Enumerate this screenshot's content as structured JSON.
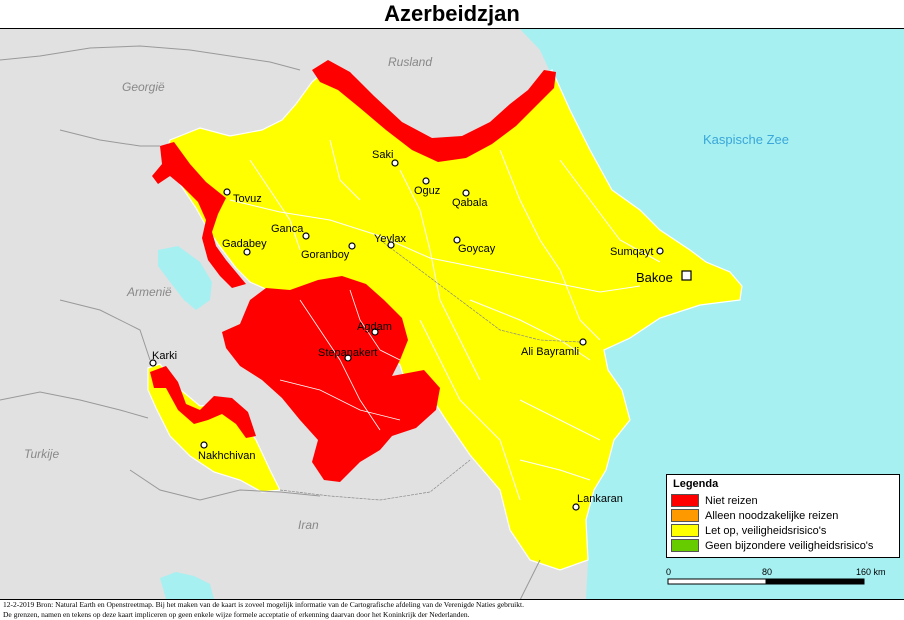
{
  "title": "Azerbeidzjan",
  "neighbors": {
    "russia": "Rusland",
    "georgia": "Georgië",
    "caspian": "Kaspische Zee",
    "armenia": "Armenië",
    "turkey": "Turkije",
    "iran": "Iran"
  },
  "cities": {
    "saki": "Saki",
    "oguz": "Oguz",
    "qabala": "Qabala",
    "tovuz": "Tovuz",
    "ganca": "Ganca",
    "yevlax": "Yevlax",
    "gadabey": "Gadabey",
    "goranboy": "Goranboy",
    "goycay": "Goycay",
    "sumqayt": "Sumqayt",
    "bakoe": "Bakoe",
    "agdam": "Agdam",
    "karki": "Karki",
    "stepanakert": "Stepanakert",
    "ali_bayramli": "Ali Bayramli",
    "nakhchivan": "Nakhchivan",
    "lankaran": "Lankaran"
  },
  "legend": {
    "title": "Legenda",
    "items": [
      {
        "label": "Niet reizen",
        "color": "#ff0000"
      },
      {
        "label": "Alleen noodzakelijke reizen",
        "color": "#ff9900"
      },
      {
        "label": "Let op, veiligheidsrisico's",
        "color": "#ffff00"
      },
      {
        "label": "Geen bijzondere veiligheidsrisico's",
        "color": "#66cc00"
      }
    ]
  },
  "scale": {
    "ticks": [
      "0",
      "80",
      "160 km"
    ]
  },
  "footer": {
    "line1": "12-2-2019 Bron: Natural Earth en Openstreetmap. Bij het maken van de kaart is zoveel mogelijk informatie van de Cartografische afdeling van de Verenigde Naties gebruikt.",
    "line2": "De grenzen, namen en tekens op deze kaart impliceren op geen enkele wijze formele acceptatie of erkenning daarvan door het Koninkrijk der Nederlanden."
  },
  "colors": {
    "sea": "#a6f0f2",
    "land": "#e1e1e1",
    "risk": "#ffff00",
    "danger": "#ff0000"
  }
}
